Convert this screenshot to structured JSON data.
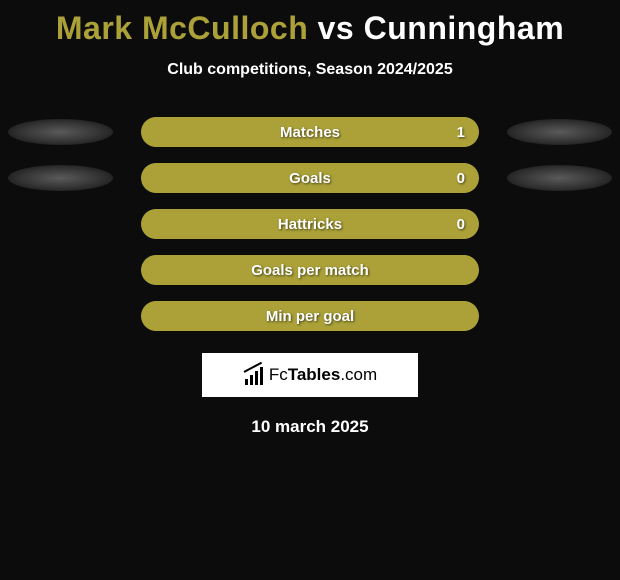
{
  "title": {
    "player1": "Mark McCulloch",
    "vs": "vs",
    "player2": "Cunningham"
  },
  "subtitle": "Club competitions, Season 2024/2025",
  "colors": {
    "player1_fill": "#aba138",
    "player2_fill": "#ffffff",
    "bar_border": "#aba138",
    "background": "#0c0c0c",
    "label_text": "#ffffff",
    "value_text": "#ffffff"
  },
  "bar_style": {
    "track_width": 338,
    "track_height": 30,
    "border_radius": 15,
    "border_width": 2,
    "label_fontsize": 15
  },
  "rows": [
    {
      "label": "Matches",
      "value_right": "1",
      "fill_pct_p1": 100,
      "fill_pct_p2": 0,
      "show_shadows": true,
      "show_value": true
    },
    {
      "label": "Goals",
      "value_right": "0",
      "fill_pct_p1": 100,
      "fill_pct_p2": 0,
      "show_shadows": true,
      "show_value": true
    },
    {
      "label": "Hattricks",
      "value_right": "0",
      "fill_pct_p1": 100,
      "fill_pct_p2": 0,
      "show_shadows": false,
      "show_value": true
    },
    {
      "label": "Goals per match",
      "value_right": "",
      "fill_pct_p1": 100,
      "fill_pct_p2": 0,
      "show_shadows": false,
      "show_value": false
    },
    {
      "label": "Min per goal",
      "value_right": "",
      "fill_pct_p1": 100,
      "fill_pct_p2": 0,
      "show_shadows": false,
      "show_value": false
    }
  ],
  "brand": {
    "text_prefix": "Fc",
    "text_bold": "Tables",
    "text_suffix": ".com"
  },
  "date": "10 march 2025"
}
